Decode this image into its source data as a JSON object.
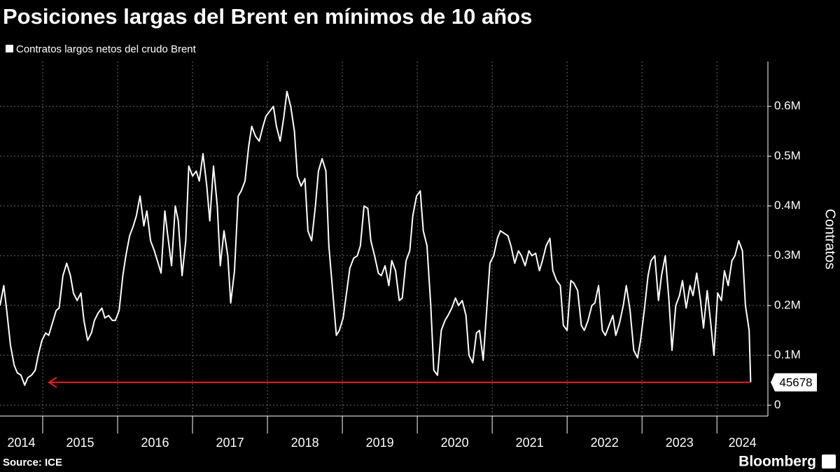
{
  "chart_data": {
    "type": "line",
    "title": "Posiciones largas del Brent en mínimos de 10 años",
    "y_label": "Contratos",
    "source": "Source: ICE",
    "brand": "Bloomberg",
    "xlim": [
      2014.43,
      2024.68
    ],
    "xticks": [
      2014,
      2015,
      2016,
      2017,
      2018,
      2019,
      2020,
      2021,
      2022,
      2023,
      2024
    ],
    "ylim": [
      -22000,
      690000
    ],
    "yticks": [
      0,
      {
        "value": 100000,
        "label": "0.1M"
      },
      {
        "value": 200000,
        "label": "0.2M"
      },
      {
        "value": 300000,
        "label": "0.3M"
      },
      {
        "value": 400000,
        "label": "0.4M"
      },
      {
        "value": 500000,
        "label": "0.5M"
      },
      {
        "value": 600000,
        "label": "0.6M"
      }
    ],
    "grid": true,
    "x": [
      2014.43,
      2014.48,
      2014.52,
      2014.57,
      2014.62,
      2014.66,
      2014.71,
      2014.76,
      2014.8,
      2014.85,
      2014.9,
      2014.94,
      2014.99,
      2015.04,
      2015.08,
      2015.13,
      2015.18,
      2015.22,
      2015.27,
      2015.32,
      2015.37,
      2015.41,
      2015.46,
      2015.51,
      2015.55,
      2015.6,
      2015.65,
      2015.69,
      2015.74,
      2015.79,
      2015.83,
      2015.88,
      2015.93,
      2015.97,
      2016.02,
      2016.07,
      2016.11,
      2016.16,
      2016.21,
      2016.25,
      2016.3,
      2016.35,
      2016.39,
      2016.44,
      2016.49,
      2016.53,
      2016.58,
      2016.63,
      2016.67,
      2016.72,
      2016.77,
      2016.81,
      2016.86,
      2016.91,
      2016.95,
      2017,
      2017.05,
      2017.09,
      2017.14,
      2017.19,
      2017.23,
      2017.28,
      2017.33,
      2017.37,
      2017.42,
      2017.47,
      2017.51,
      2017.56,
      2017.61,
      2017.65,
      2017.7,
      2017.75,
      2017.79,
      2017.84,
      2017.89,
      2017.94,
      2017.98,
      2018.03,
      2018.08,
      2018.12,
      2018.17,
      2018.22,
      2018.26,
      2018.31,
      2018.36,
      2018.4,
      2018.45,
      2018.5,
      2018.54,
      2018.59,
      2018.64,
      2018.68,
      2018.73,
      2018.78,
      2018.82,
      2018.87,
      2018.92,
      2018.96,
      2019.01,
      2019.06,
      2019.1,
      2019.15,
      2019.2,
      2019.24,
      2019.29,
      2019.34,
      2019.38,
      2019.43,
      2019.48,
      2019.52,
      2019.57,
      2019.62,
      2019.66,
      2019.71,
      2019.76,
      2019.8,
      2019.85,
      2019.9,
      2019.94,
      2019.99,
      2020.04,
      2020.08,
      2020.13,
      2020.18,
      2020.22,
      2020.27,
      2020.32,
      2020.37,
      2020.41,
      2020.46,
      2020.51,
      2020.55,
      2020.6,
      2020.65,
      2020.69,
      2020.74,
      2020.79,
      2020.83,
      2020.88,
      2020.93,
      2020.97,
      2021.02,
      2021.07,
      2021.11,
      2021.16,
      2021.21,
      2021.25,
      2021.3,
      2021.35,
      2021.39,
      2021.44,
      2021.49,
      2021.53,
      2021.58,
      2021.63,
      2021.67,
      2021.72,
      2021.77,
      2021.81,
      2021.86,
      2021.91,
      2021.95,
      2022,
      2022.05,
      2022.09,
      2022.14,
      2022.19,
      2022.23,
      2022.28,
      2022.33,
      2022.37,
      2022.42,
      2022.47,
      2022.51,
      2022.56,
      2022.61,
      2022.65,
      2022.7,
      2022.75,
      2022.79,
      2022.84,
      2022.89,
      2022.94,
      2022.98,
      2023.03,
      2023.08,
      2023.12,
      2023.17,
      2023.22,
      2023.26,
      2023.31,
      2023.36,
      2023.4,
      2023.45,
      2023.5,
      2023.54,
      2023.59,
      2023.64,
      2023.68,
      2023.73,
      2023.78,
      2023.82,
      2023.87,
      2023.92,
      2023.96,
      2024.01,
      2024.06,
      2024.1,
      2024.15,
      2024.2,
      2024.24,
      2024.29,
      2024.34,
      2024.38,
      2024.43,
      2024.45
    ],
    "series": [
      {
        "name": "Contratos largos netos del crudo Brent",
        "color": "#ffffff",
        "values": [
          200000,
          240000,
          190000,
          120000,
          80000,
          65000,
          60000,
          40000,
          55000,
          60000,
          70000,
          100000,
          130000,
          145000,
          140000,
          165000,
          190000,
          195000,
          260000,
          285000,
          260000,
          225000,
          210000,
          225000,
          170000,
          130000,
          145000,
          170000,
          185000,
          195000,
          175000,
          180000,
          170000,
          170000,
          190000,
          260000,
          300000,
          340000,
          360000,
          380000,
          420000,
          360000,
          390000,
          330000,
          310000,
          290000,
          265000,
          390000,
          340000,
          280000,
          400000,
          370000,
          260000,
          330000,
          480000,
          460000,
          470000,
          450000,
          505000,
          440000,
          370000,
          480000,
          400000,
          280000,
          350000,
          300000,
          205000,
          270000,
          420000,
          430000,
          450000,
          520000,
          560000,
          540000,
          530000,
          560000,
          580000,
          590000,
          600000,
          560000,
          530000,
          580000,
          630000,
          600000,
          550000,
          460000,
          440000,
          455000,
          350000,
          330000,
          400000,
          470000,
          495000,
          470000,
          320000,
          230000,
          140000,
          150000,
          175000,
          230000,
          275000,
          295000,
          300000,
          320000,
          400000,
          395000,
          330000,
          300000,
          265000,
          260000,
          280000,
          240000,
          290000,
          270000,
          210000,
          215000,
          290000,
          310000,
          380000,
          420000,
          430000,
          350000,
          320000,
          200000,
          70000,
          60000,
          150000,
          170000,
          180000,
          195000,
          215000,
          200000,
          210000,
          180000,
          100000,
          85000,
          145000,
          150000,
          90000,
          200000,
          285000,
          300000,
          335000,
          350000,
          345000,
          340000,
          320000,
          285000,
          310000,
          300000,
          280000,
          310000,
          300000,
          305000,
          270000,
          290000,
          320000,
          335000,
          270000,
          250000,
          240000,
          160000,
          150000,
          250000,
          245000,
          230000,
          160000,
          150000,
          170000,
          200000,
          205000,
          240000,
          150000,
          140000,
          160000,
          180000,
          140000,
          165000,
          200000,
          240000,
          190000,
          110000,
          95000,
          130000,
          190000,
          260000,
          290000,
          300000,
          210000,
          260000,
          300000,
          210000,
          110000,
          200000,
          220000,
          250000,
          195000,
          240000,
          220000,
          265000,
          210000,
          155000,
          230000,
          160000,
          100000,
          225000,
          210000,
          270000,
          240000,
          290000,
          300000,
          330000,
          310000,
          200000,
          150000,
          45678
        ]
      }
    ]
  }
}
